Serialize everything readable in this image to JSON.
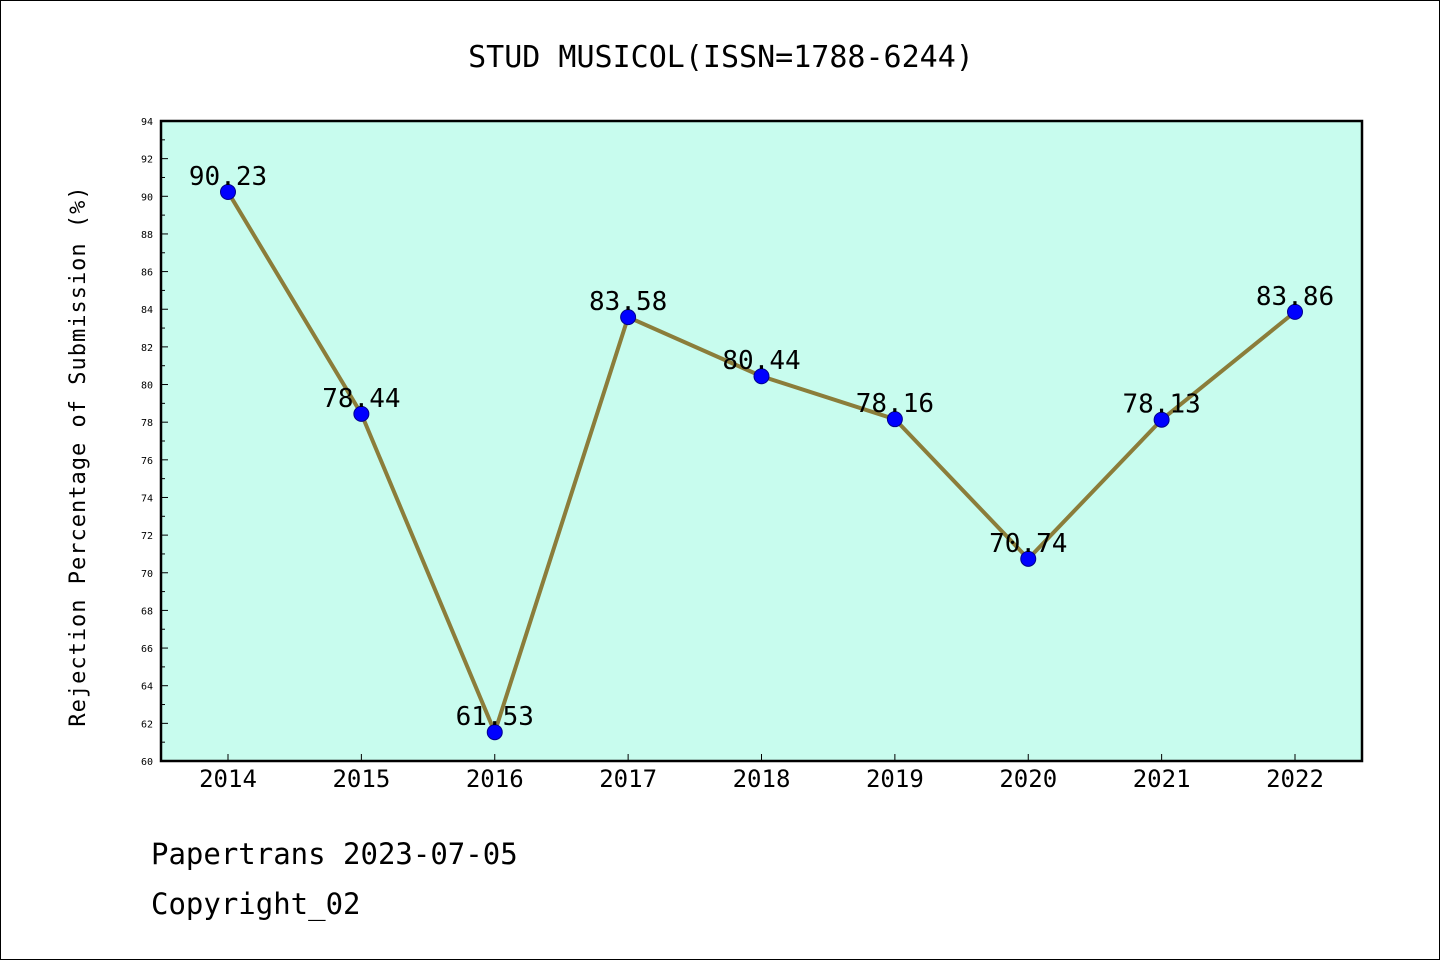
{
  "chart_data": {
    "type": "line",
    "title": "STUD MUSICOL(ISSN=1788-6244)",
    "ylabel": "Rejection Percentage of Submission (%)",
    "xlabel": "",
    "categories": [
      "2014",
      "2015",
      "2016",
      "2017",
      "2018",
      "2019",
      "2020",
      "2021",
      "2022"
    ],
    "series": [
      {
        "values": [
          90.23,
          78.44,
          61.53,
          83.58,
          80.44,
          78.16,
          70.74,
          78.13,
          83.86
        ]
      }
    ],
    "data_labels": [
      "90.23",
      "78.44",
      "61.53",
      "83.58",
      "80.44",
      "78.16",
      "70.74",
      "78.13",
      "83.86"
    ],
    "ylim": [
      60,
      94
    ],
    "yticks": [
      "60",
      "62",
      "64",
      "66",
      "68",
      "70",
      "72",
      "74",
      "76",
      "78",
      "80",
      "82",
      "84",
      "86",
      "88",
      "90",
      "92",
      "94"
    ],
    "grid": false,
    "legend": "none",
    "colors": {
      "plot_background": "#c8fcee",
      "line": "#8b7d3a",
      "marker": "#0000ff"
    }
  },
  "footer": {
    "line1": "Papertrans 2023-07-05",
    "line2": "Copyright_02"
  }
}
